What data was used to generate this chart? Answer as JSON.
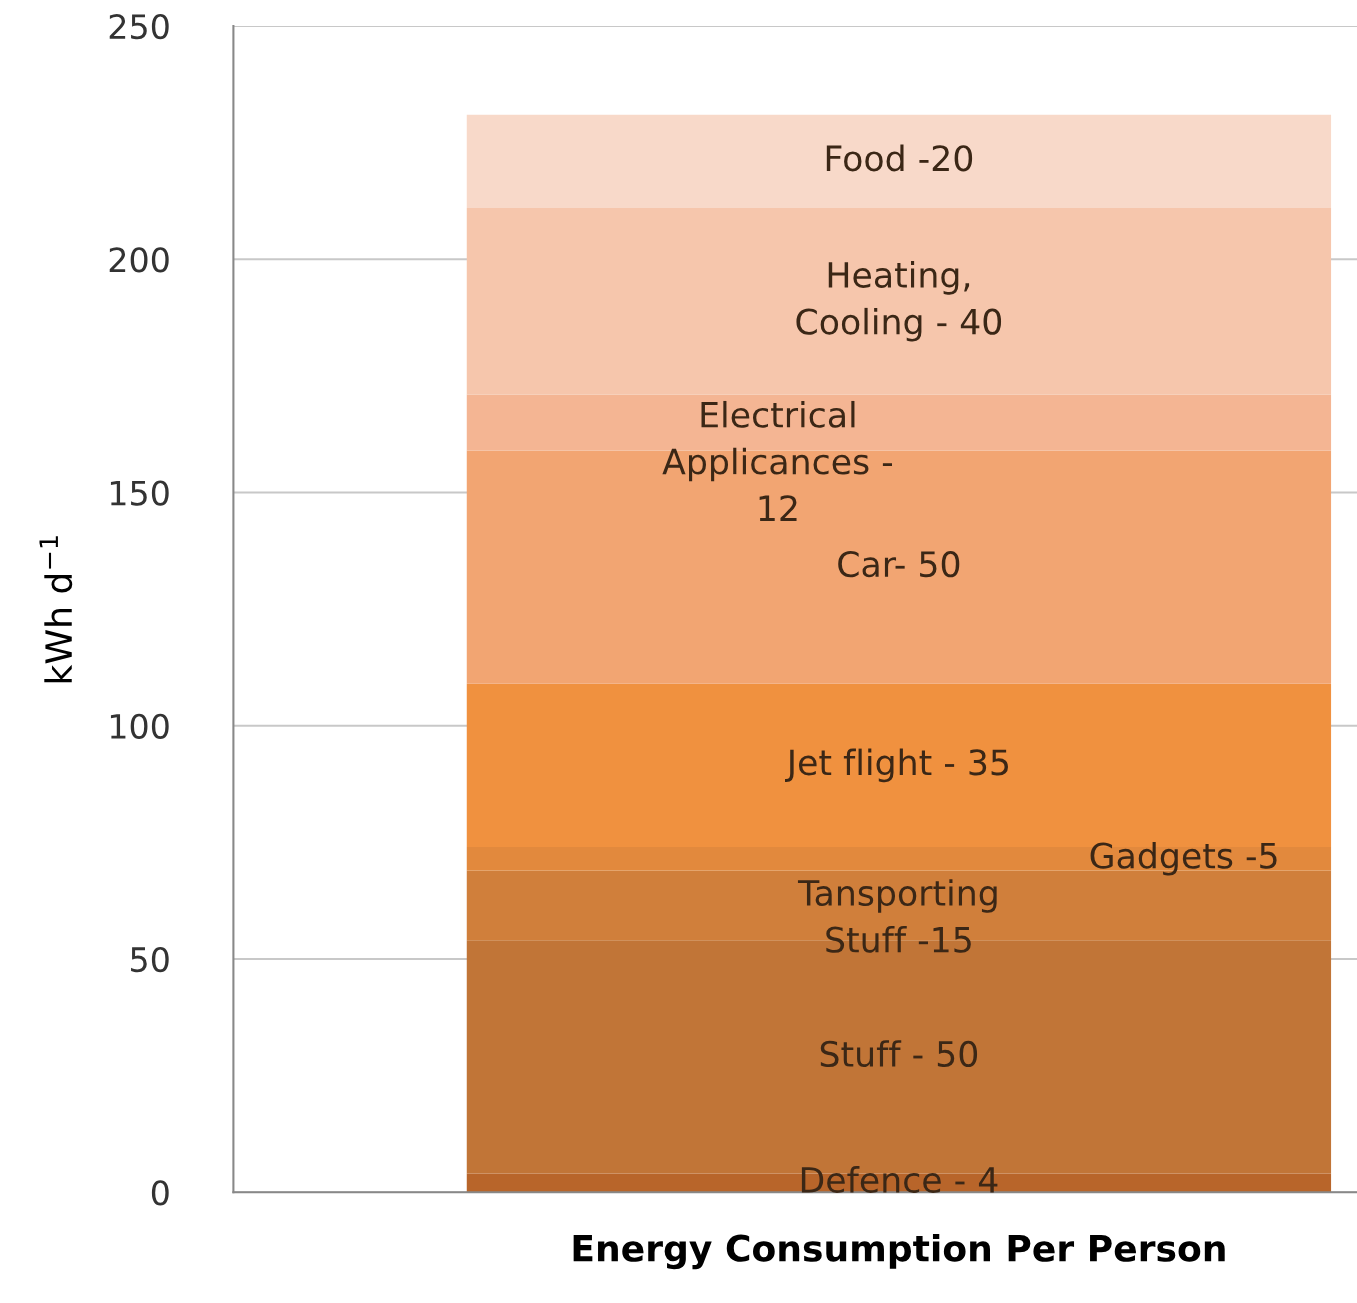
{
  "chart_data": {
    "type": "bar",
    "stacked": true,
    "ylabel": "kWh d$^{−1}$",
    "categories": [
      "Energy Consumption Per Person"
    ],
    "ylim": [
      0,
      250
    ],
    "yticks": [
      0,
      50,
      100,
      150,
      200,
      250
    ],
    "grid": "y",
    "series": [
      {
        "color": "#b8652a",
        "values": [
          4
        ]
      },
      {
        "color": "#c17537",
        "values": [
          50
        ]
      },
      {
        "color": "#d07f3b",
        "values": [
          15
        ]
      },
      {
        "color": "#e2893d",
        "values": [
          5
        ]
      },
      {
        "color": "#f0913f",
        "values": [
          35
        ]
      },
      {
        "color": "#f2a572",
        "values": [
          50
        ]
      },
      {
        "color": "#f4b593",
        "values": [
          12
        ]
      },
      {
        "color": "#f6c6ac",
        "values": [
          40
        ]
      },
      {
        "color": "#f8d9c9",
        "values": [
          20
        ]
      }
    ],
    "annotations": [
      "Defence - 4",
      "Stuff - 50",
      "Tansporting\nStuff -15",
      "Gadgets -5",
      "Jet flight - 35",
      "Car- 50",
      "Electrical\nApplicances -\n12",
      "Heating,\nCooling - 40",
      "Food -20"
    ]
  }
}
